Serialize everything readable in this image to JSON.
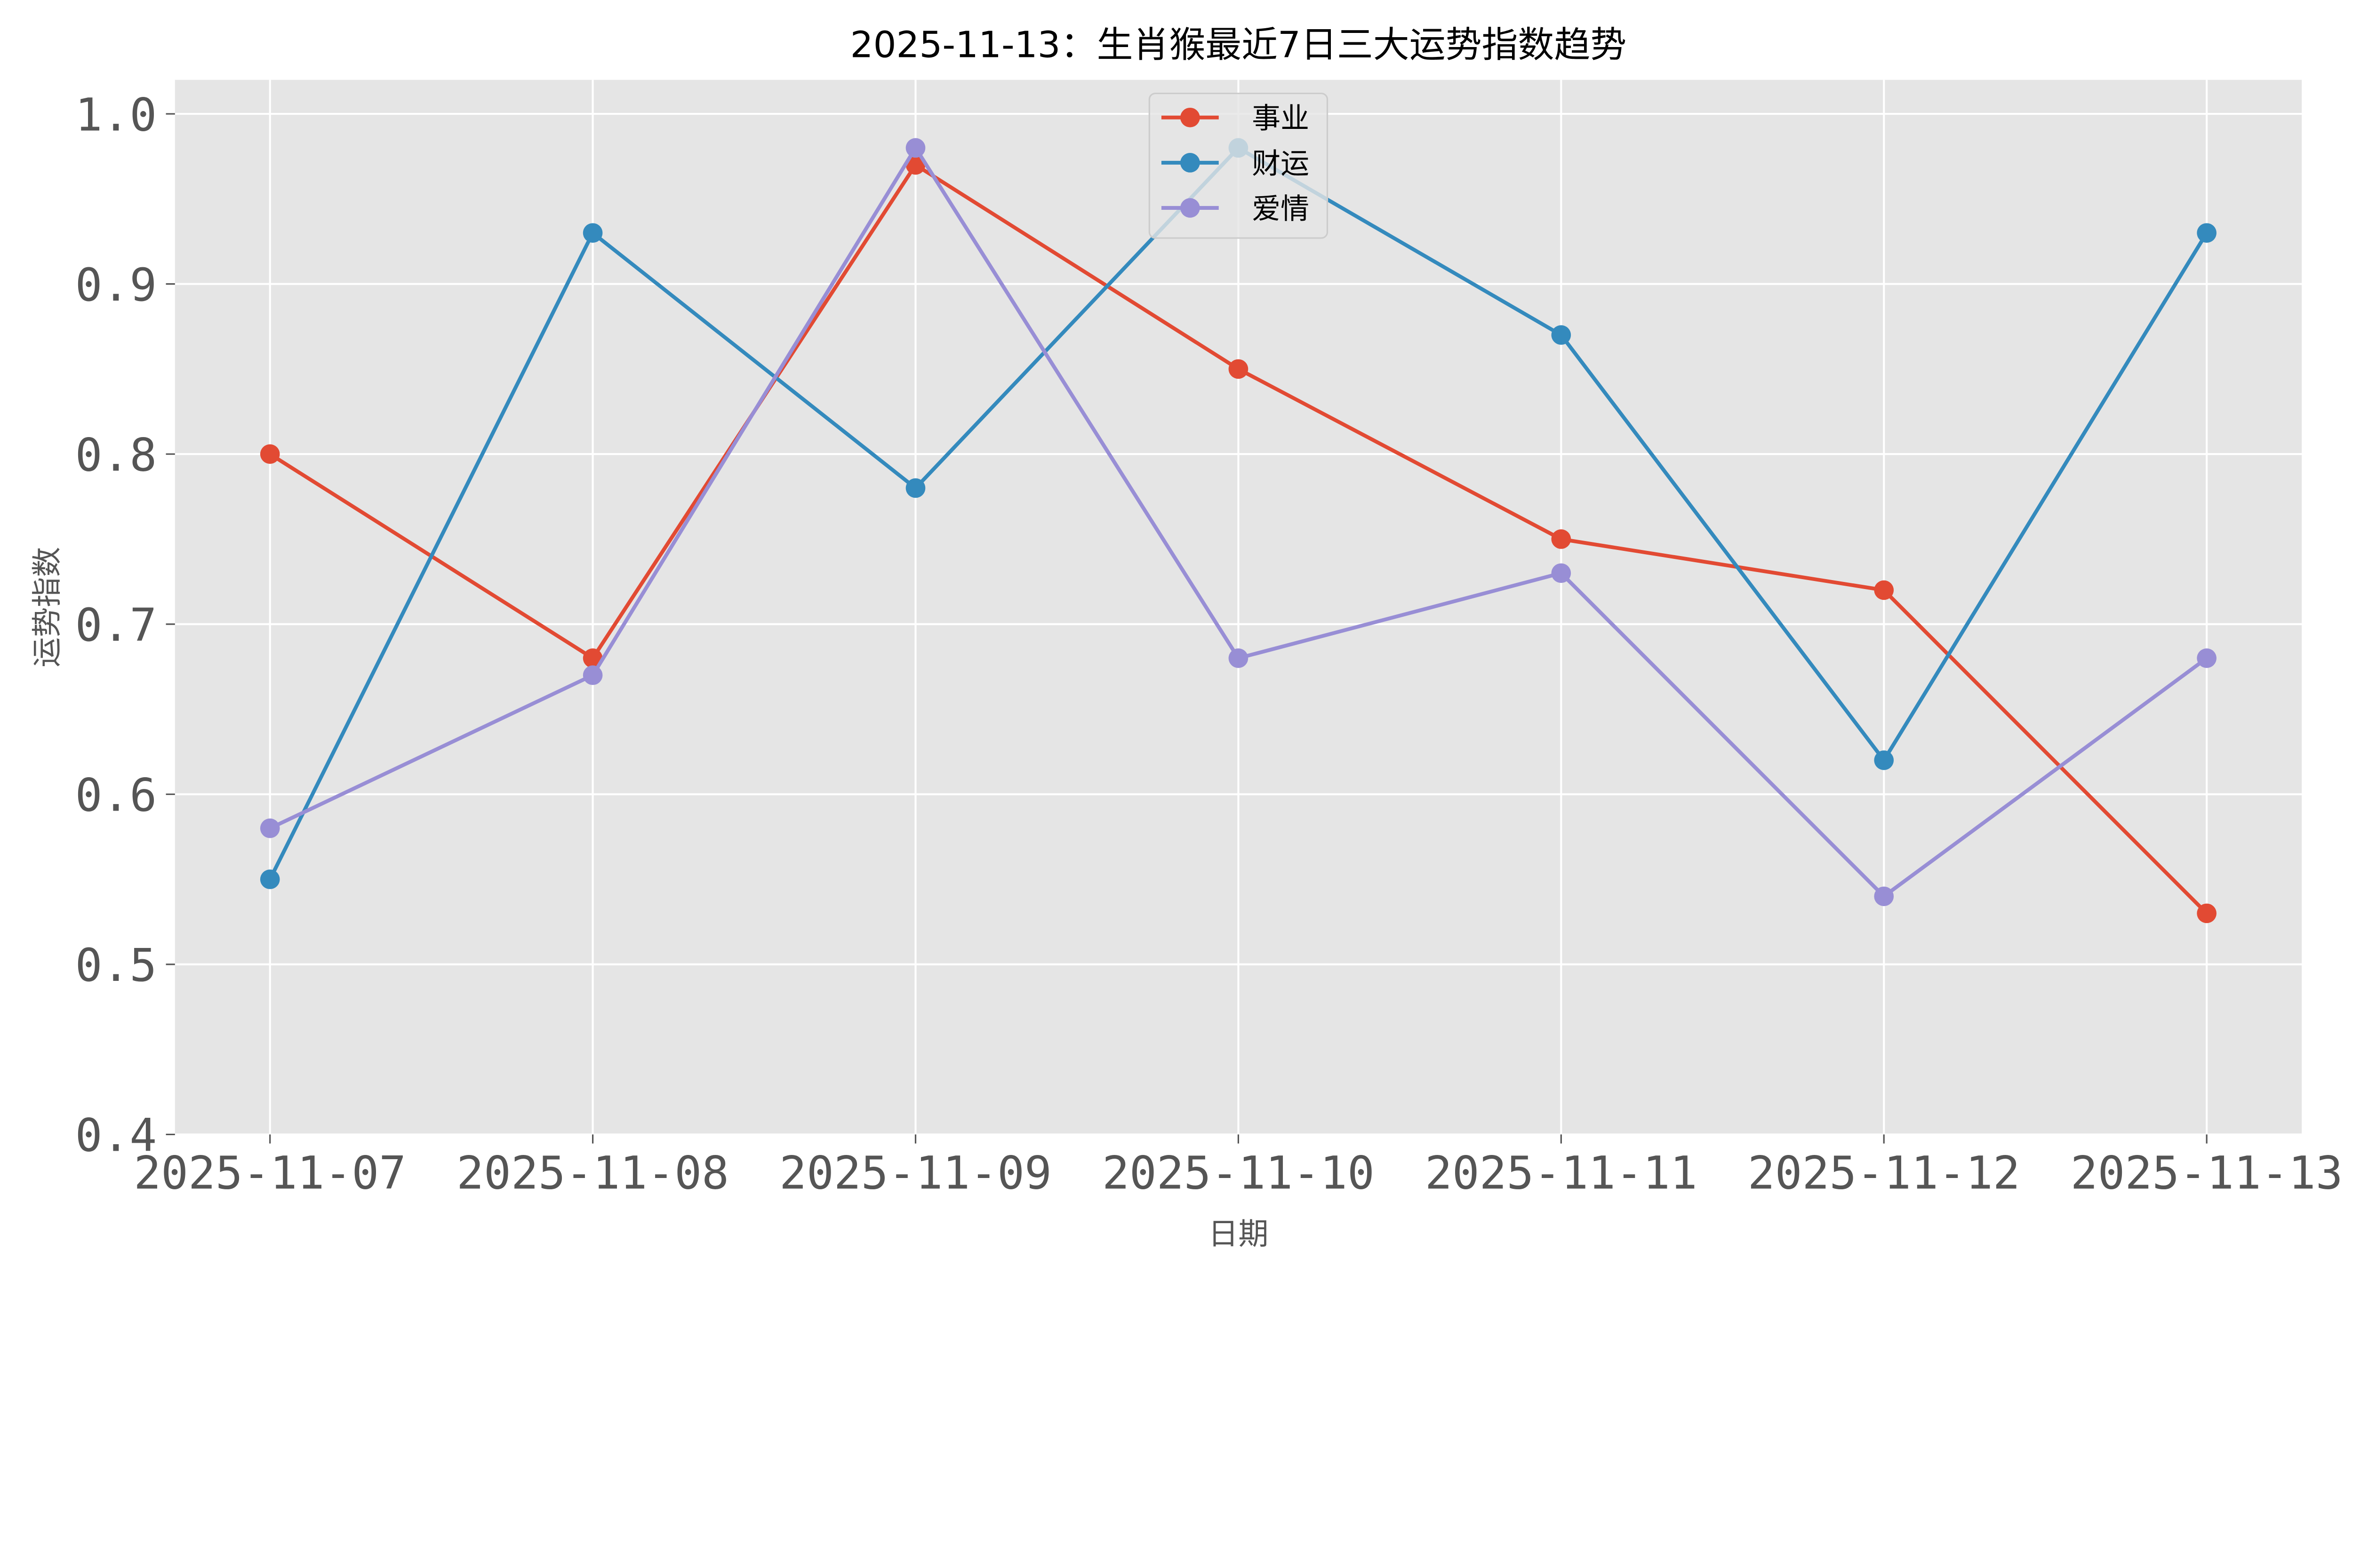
{
  "chart_data": {
    "type": "line",
    "title": "2025-11-13：生肖猴最近7日三大运势指数趋势",
    "xlabel": "日期",
    "ylabel": "运势指数",
    "categories": [
      "2025-11-07",
      "2025-11-08",
      "2025-11-09",
      "2025-11-10",
      "2025-11-11",
      "2025-11-12",
      "2025-11-13"
    ],
    "ylim": [
      0.4,
      1.02
    ],
    "yticks": [
      "0.4",
      "0.5",
      "0.6",
      "0.7",
      "0.8",
      "0.9",
      "1.0"
    ],
    "grid": true,
    "legend_position": "top-center",
    "series": [
      {
        "name": "事业",
        "color": "#E24A33",
        "values": [
          0.8,
          0.68,
          0.97,
          0.85,
          0.75,
          0.72,
          0.53
        ]
      },
      {
        "name": "财运",
        "color": "#348ABD",
        "values": [
          0.55,
          0.93,
          0.78,
          0.98,
          0.87,
          0.62,
          0.93
        ]
      },
      {
        "name": "爱情",
        "color": "#988ED5",
        "values": [
          0.58,
          0.67,
          0.98,
          0.68,
          0.73,
          0.54,
          0.68
        ]
      }
    ]
  }
}
